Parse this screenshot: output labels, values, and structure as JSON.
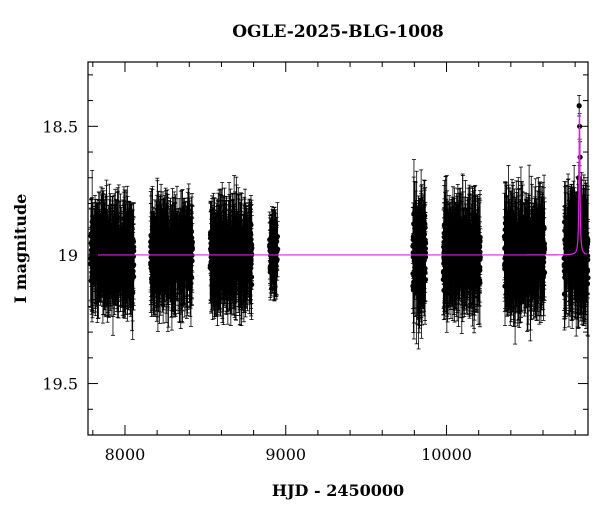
{
  "chart_data": {
    "type": "scatter",
    "title": "OGLE-2025-BLG-1008",
    "xlabel": "HJD - 2450000",
    "ylabel": "I magnitude",
    "xlim": [
      7770,
      10880
    ],
    "ylim": [
      19.7,
      18.25
    ],
    "y_inverted": true,
    "x_ticks": [
      8000,
      9000,
      10000
    ],
    "x_ticklabels": [
      "8000",
      "9000",
      "10000"
    ],
    "y_ticks": [
      18.5,
      19,
      19.5
    ],
    "y_ticklabels": [
      "18.5",
      "19",
      "19.5"
    ],
    "grid": false,
    "legend": "none",
    "baseline_mag": 19.0,
    "colors": {
      "points": "#000000",
      "model": "#e020e0",
      "axes": "#000000"
    },
    "series": [
      {
        "kind": "photometry",
        "seasons": [
          {
            "x_range": [
              7785,
              8055
            ],
            "mean_mag": 19.0,
            "scatter": 0.13,
            "mean_err": 0.14
          },
          {
            "x_range": [
              8160,
              8420
            ],
            "mean_mag": 19.0,
            "scatter": 0.13,
            "mean_err": 0.14
          },
          {
            "x_range": [
              8530,
              8790
            ],
            "mean_mag": 19.0,
            "scatter": 0.13,
            "mean_err": 0.14
          },
          {
            "x_range": [
              8900,
              8950
            ],
            "mean_mag": 19.0,
            "scatter": 0.1,
            "mean_err": 0.1
          },
          {
            "x_range": [
              9790,
              9870
            ],
            "mean_mag": 19.0,
            "scatter": 0.18,
            "mean_err": 0.15
          },
          {
            "x_range": [
              9980,
              10210
            ],
            "mean_mag": 19.0,
            "scatter": 0.14,
            "mean_err": 0.14
          },
          {
            "x_range": [
              10360,
              10610
            ],
            "mean_mag": 19.0,
            "scatter": 0.15,
            "mean_err": 0.15
          },
          {
            "x_range": [
              10730,
              10880
            ],
            "mean_mag": 19.0,
            "scatter": 0.16,
            "mean_err": 0.16
          }
        ],
        "peak_points": [
          {
            "x": 10825,
            "y": 18.42,
            "err": 0.04
          },
          {
            "x": 10828,
            "y": 18.5,
            "err": 0.05
          },
          {
            "x": 10831,
            "y": 18.62,
            "err": 0.06
          },
          {
            "x": 10822,
            "y": 18.7,
            "err": 0.06
          }
        ]
      },
      {
        "kind": "model",
        "baseline": 19.0,
        "t0": 10827,
        "peak_mag": 18.44,
        "width": 3.5
      }
    ]
  }
}
